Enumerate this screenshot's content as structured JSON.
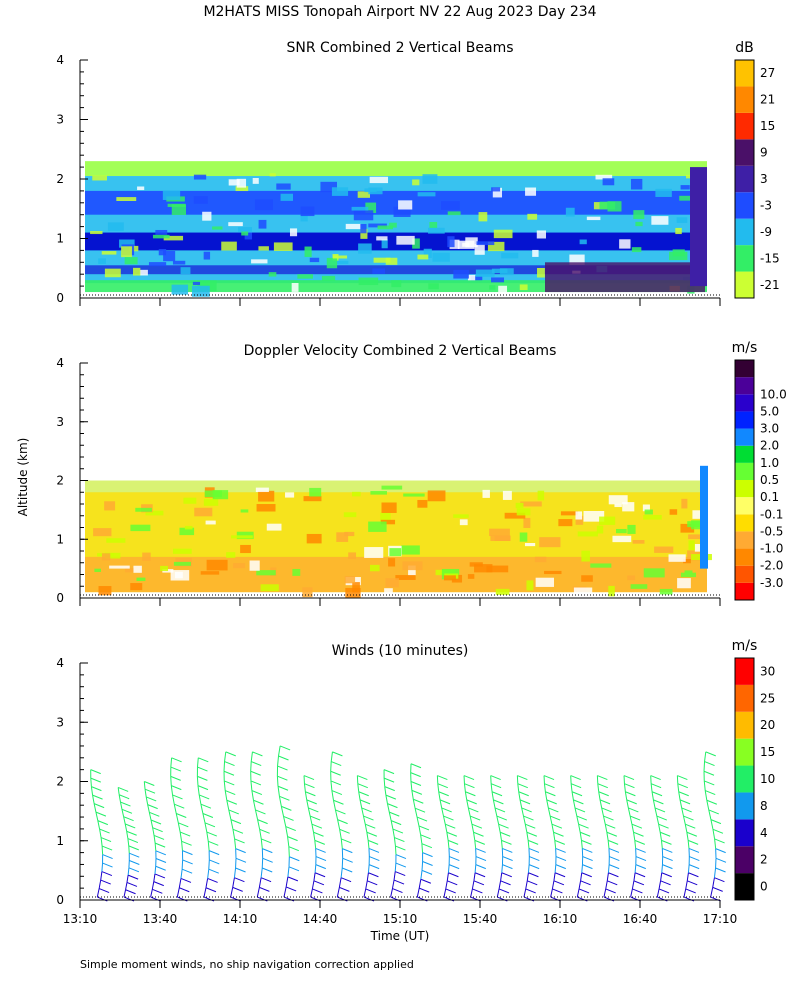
{
  "title": "M2HATS MISS Tonopah Airport NV  22 Aug 2023 Day 234",
  "ylabel": "Altitude (km)",
  "footnote": "Simple moment winds, no ship navigation correction applied",
  "chart_data": [
    {
      "type": "heatmap",
      "title": "SNR Combined 2 Vertical Beams",
      "ylim": [
        0,
        4
      ],
      "yticks": [
        "0",
        "1",
        "2",
        "3",
        "4"
      ],
      "colorbar": {
        "unit": "dB",
        "colors": [
          "#ccff33",
          "#33ee66",
          "#22bbee",
          "#1e4cff",
          "#3e1fa6",
          "#4a1068",
          "#ff2a00",
          "#ff8800",
          "#ffc200"
        ],
        "labels": [
          "-21",
          "-15",
          "-9",
          "-3",
          "3",
          "9",
          "15",
          "21",
          "27"
        ]
      },
      "layers": [
        {
          "name": "dark-core",
          "color": "#0000cc",
          "x_start": "13:10",
          "x_end": "17:00",
          "height_km": [
            1.8,
            1.0
          ]
        },
        {
          "name": "cyan",
          "color": "#22bbee",
          "x_start": "13:10",
          "x_end": "17:05",
          "height_km": [
            2.0,
            0.3
          ]
        },
        {
          "name": "top-fringe",
          "color": "#99ff44",
          "x_start": "13:10",
          "x_end": "17:05",
          "height_km": [
            2.3,
            2.0
          ]
        }
      ]
    },
    {
      "type": "heatmap",
      "title": "Doppler Velocity Combined 2 Vertical Beams",
      "ylim": [
        0,
        4
      ],
      "yticks": [
        "0",
        "1",
        "2",
        "3",
        "4"
      ],
      "colorbar": {
        "unit": "m/s",
        "colors": [
          "#ff0000",
          "#ff5500",
          "#ff8800",
          "#ffaa33",
          "#ffdd00",
          "#ffff66",
          "#ccff00",
          "#66ff33",
          "#00dd33",
          "#1188ff",
          "#0022ff",
          "#2a00cc",
          "#4b0099",
          "#330033"
        ],
        "labels": [
          "-3.0",
          "-2.0",
          "-1.0",
          "-0.5",
          "-0.1",
          "0.1",
          "0.5",
          "1.0",
          "2.0",
          "3.0",
          "5.0",
          "10.0"
        ]
      },
      "layers": [
        {
          "name": "velocity-field",
          "color": "#ccee44",
          "x_start": "13:10",
          "x_end": "17:05",
          "height_km": [
            2.0,
            0.1
          ]
        }
      ]
    },
    {
      "type": "scatter",
      "title": "Winds (10 minutes)",
      "ylim": [
        0,
        4
      ],
      "yticks": [
        "0",
        "1",
        "2",
        "3",
        "4"
      ],
      "xlabel": "Time (UT)",
      "xlim": [
        "13:10",
        "17:10"
      ],
      "xticks": [
        "13:10",
        "13:40",
        "14:10",
        "14:40",
        "15:10",
        "15:40",
        "16:10",
        "16:40",
        "17:10"
      ],
      "colorbar": {
        "unit": "m/s",
        "colors": [
          "#000000",
          "#4b0066",
          "#1a00cc",
          "#1199ee",
          "#22ee66",
          "#88ff22",
          "#ffbb00",
          "#ff6600",
          "#ff0000"
        ],
        "labels": [
          "0",
          "2",
          "4",
          "8",
          "10",
          "15",
          "20",
          "25",
          "30"
        ]
      },
      "profiles": [
        {
          "time": "13:20",
          "top_km": 2.2
        },
        {
          "time": "13:30",
          "top_km": 1.9
        },
        {
          "time": "13:40",
          "top_km": 2.0
        },
        {
          "time": "13:50",
          "top_km": 2.4
        },
        {
          "time": "14:00",
          "top_km": 2.4
        },
        {
          "time": "14:10",
          "top_km": 2.5
        },
        {
          "time": "14:20",
          "top_km": 2.5
        },
        {
          "time": "14:30",
          "top_km": 2.6
        },
        {
          "time": "14:40",
          "top_km": 2.1
        },
        {
          "time": "14:50",
          "top_km": 2.5
        },
        {
          "time": "15:00",
          "top_km": 2.1
        },
        {
          "time": "15:10",
          "top_km": 2.2
        },
        {
          "time": "15:20",
          "top_km": 2.3
        },
        {
          "time": "15:30",
          "top_km": 2.1
        },
        {
          "time": "15:40",
          "top_km": 2.1
        },
        {
          "time": "15:50",
          "top_km": 2.1
        },
        {
          "time": "16:00",
          "top_km": 2.1
        },
        {
          "time": "16:10",
          "top_km": 2.1
        },
        {
          "time": "16:20",
          "top_km": 2.1
        },
        {
          "time": "16:30",
          "top_km": 2.1
        },
        {
          "time": "16:40",
          "top_km": 2.1
        },
        {
          "time": "16:50",
          "top_km": 2.1
        },
        {
          "time": "17:00",
          "top_km": 2.1
        },
        {
          "time": "17:10",
          "top_km": 2.5
        }
      ]
    }
  ]
}
